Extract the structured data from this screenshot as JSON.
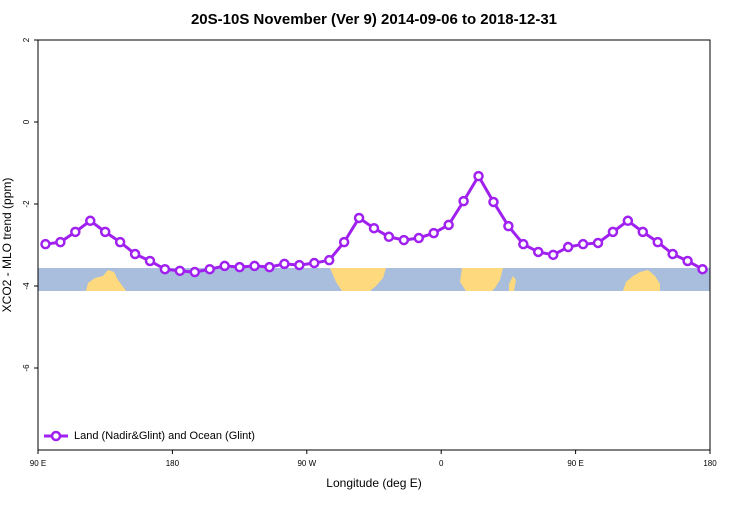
{
  "chart_data": {
    "type": "line",
    "title": "20S-10S November (Ver 9)   2014-09-06 to 2018-12-31",
    "x_label": "Longitude (deg E)",
    "y_label": "XCO2 - MLO trend (ppm)",
    "xlim": [
      90,
      540
    ],
    "ylim": [
      -8,
      2
    ],
    "xticks": [
      {
        "value": 90,
        "label": "90 E"
      },
      {
        "value": 180,
        "label": "180"
      },
      {
        "value": 270,
        "label": "90 W"
      },
      {
        "value": 360,
        "label": "0"
      },
      {
        "value": 450,
        "label": "90 E"
      },
      {
        "value": 540,
        "label": "180"
      }
    ],
    "yticks": [
      -6,
      -4,
      -2,
      0,
      2
    ],
    "legend": "bottom left",
    "series": [
      {
        "name": "Land (Nadir&Glint) and Ocean (Glint)",
        "color": "#a020f0",
        "x": [
          95,
          105,
          115,
          125,
          135,
          145,
          155,
          165,
          175,
          185,
          195,
          205,
          215,
          225,
          235,
          245,
          255,
          265,
          275,
          285,
          295,
          305,
          315,
          325,
          335,
          345,
          355,
          365,
          375,
          385,
          395,
          405,
          415,
          425,
          435,
          445,
          455,
          465,
          475,
          485,
          495,
          505,
          515,
          525,
          535
        ],
        "values": [
          -2.98,
          -2.93,
          -2.68,
          -2.41,
          -2.68,
          -2.93,
          -3.22,
          -3.39,
          -3.59,
          -3.63,
          -3.66,
          -3.59,
          -3.51,
          -3.54,
          -3.51,
          -3.54,
          -3.46,
          -3.49,
          -3.44,
          -3.37,
          -2.93,
          -2.34,
          -2.59,
          -2.8,
          -2.88,
          -2.83,
          -2.71,
          -2.51,
          -1.93,
          -1.32,
          -1.95,
          -2.54,
          -2.98,
          -3.17,
          -3.24,
          -3.05,
          -2.98,
          -2.95,
          -2.68,
          -2.41,
          -2.68,
          -2.93,
          -3.22,
          -3.39,
          -3.59
        ]
      }
    ]
  }
}
